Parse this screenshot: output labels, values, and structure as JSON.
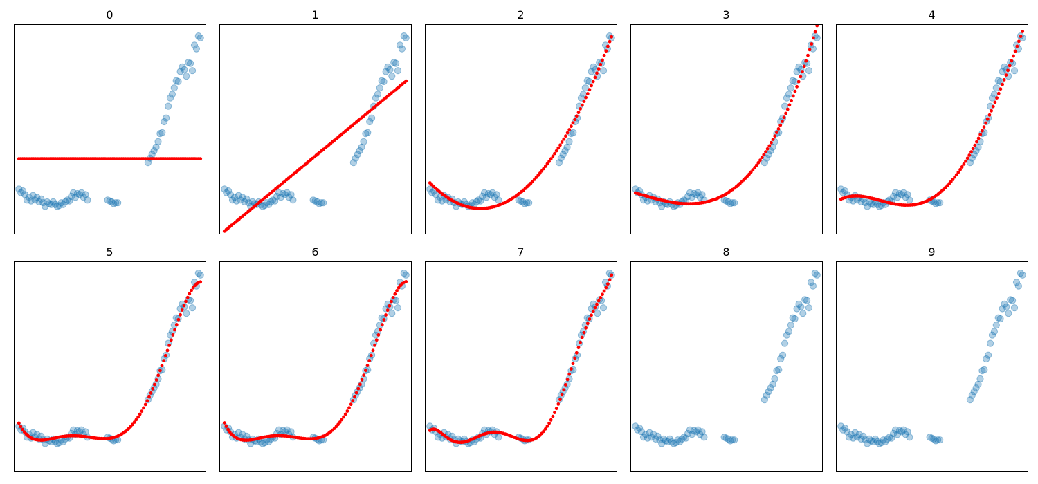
{
  "colors": {
    "points": "#1f77b4",
    "fit": "#ff0000",
    "frame": "#000000",
    "background": "#ffffff"
  },
  "chart_data": {
    "type": "scatter",
    "ticks_shown": false,
    "legend": "none",
    "grid": false,
    "x": [
      0.0,
      0.1,
      0.2,
      0.3,
      0.4,
      0.5,
      0.6,
      0.7,
      0.8,
      0.9,
      1.0,
      1.1,
      1.2,
      1.3,
      1.4,
      1.5,
      1.6,
      1.7,
      1.8,
      1.9,
      2.0,
      2.1,
      2.2,
      2.3,
      2.4,
      2.5,
      2.6,
      2.7,
      2.8,
      2.9,
      3.0,
      3.1,
      3.2,
      3.3,
      3.4,
      4.4,
      4.5,
      4.6,
      4.7,
      4.8,
      4.9,
      6.4,
      6.5,
      6.6,
      6.7,
      6.8,
      6.9,
      7.0,
      7.1,
      7.2,
      7.3,
      7.4,
      7.5,
      7.6,
      7.7,
      7.8,
      7.9,
      8.0,
      8.1,
      8.2,
      8.3,
      8.4,
      8.5,
      8.6,
      8.7,
      8.8,
      8.9,
      9.0
    ],
    "y": [
      0.24,
      0.2,
      0.22,
      0.18,
      0.12,
      0.15,
      0.11,
      0.17,
      0.12,
      0.15,
      0.1,
      0.13,
      0.09,
      0.05,
      0.1,
      0.08,
      0.07,
      0.1,
      0.07,
      0.05,
      0.06,
      0.09,
      0.07,
      0.1,
      0.12,
      0.11,
      0.16,
      0.2,
      0.15,
      0.19,
      0.18,
      0.2,
      0.15,
      0.18,
      0.12,
      0.12,
      0.11,
      0.1,
      0.08,
      0.09,
      0.09,
      0.53,
      0.58,
      0.62,
      0.66,
      0.7,
      0.76,
      0.85,
      0.86,
      0.98,
      1.02,
      1.15,
      1.24,
      1.28,
      1.35,
      1.43,
      1.42,
      1.53,
      1.58,
      1.55,
      1.48,
      1.63,
      1.62,
      1.54,
      1.82,
      1.78,
      1.92,
      1.9
    ],
    "ylim": [
      -0.25,
      2.05
    ],
    "xlim": [
      -0.25,
      9.25
    ],
    "panels": [
      {
        "title": "0",
        "degree": 0,
        "fit_shown": true
      },
      {
        "title": "1",
        "degree": 1,
        "fit_shown": true
      },
      {
        "title": "2",
        "degree": 2,
        "fit_shown": true
      },
      {
        "title": "3",
        "degree": 3,
        "fit_shown": true
      },
      {
        "title": "4",
        "degree": 4,
        "fit_shown": true
      },
      {
        "title": "5",
        "degree": 5,
        "fit_shown": true
      },
      {
        "title": "6",
        "degree": 6,
        "fit_shown": true
      },
      {
        "title": "7",
        "degree": 7,
        "fit_shown": true
      },
      {
        "title": "8",
        "degree": 8,
        "fit_shown": false
      },
      {
        "title": "9",
        "degree": 9,
        "fit_shown": false
      }
    ]
  }
}
